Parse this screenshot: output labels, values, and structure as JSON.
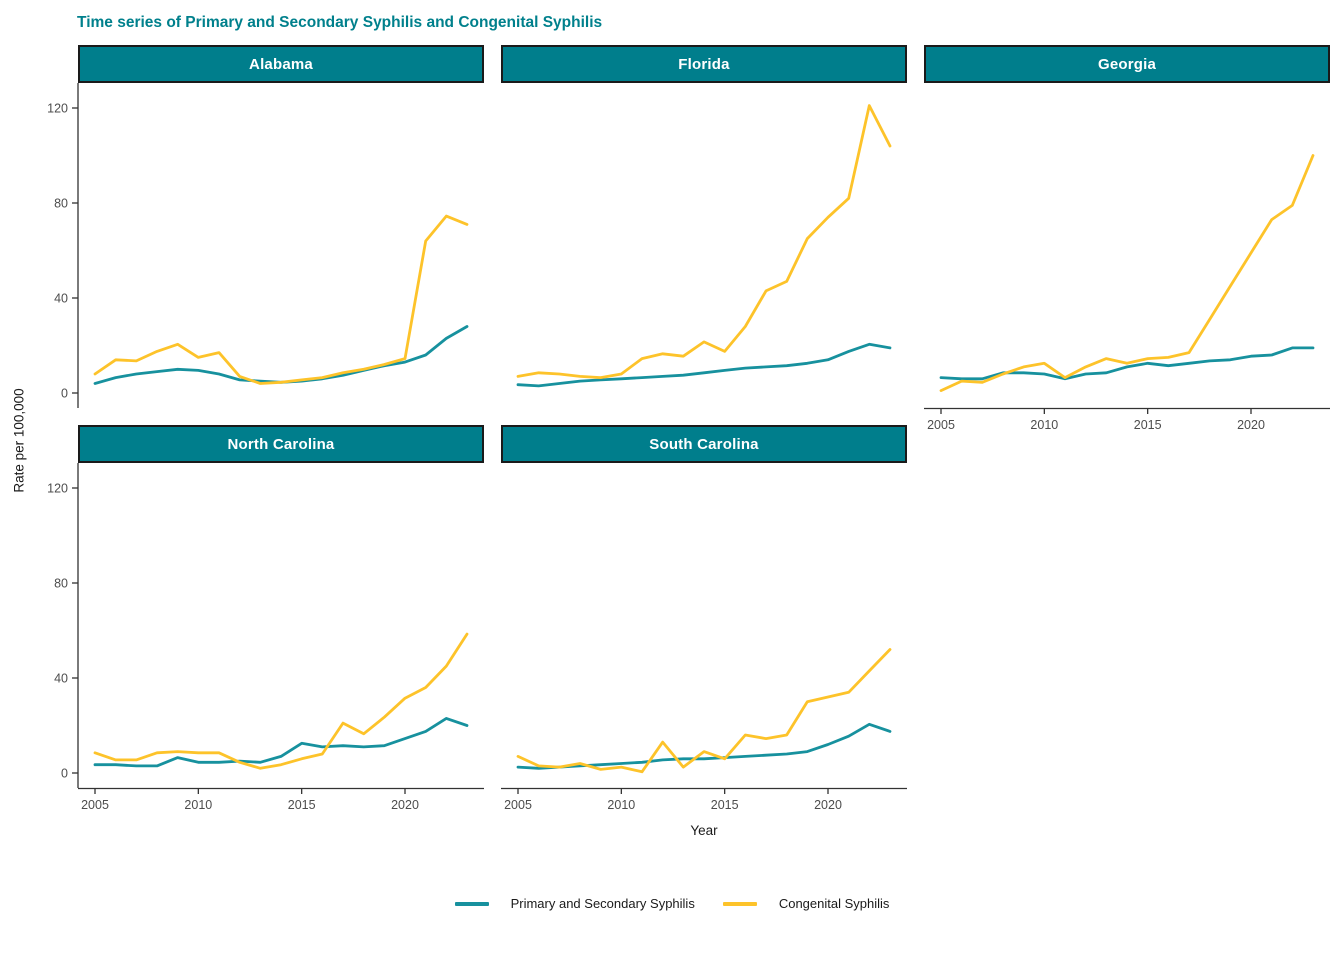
{
  "title": "Time series of Primary and Secondary Syphilis and Congenital Syphilis",
  "colors": {
    "title": "#00808C",
    "strip_background": "#007E8C",
    "strip_text": "#FFFFFF",
    "primary_secondary_line": "#17919E",
    "congenital_line": "#FDC32A",
    "axis_line": "#333333",
    "tick_label": "#4D4D4D"
  },
  "legend": [
    {
      "label": "Primary and Secondary Syphilis",
      "color": "#17919E"
    },
    {
      "label": "Congenital Syphilis",
      "color": "#FDC32A"
    }
  ],
  "chart_data": {
    "type": "line",
    "title": "Time series of Primary and Secondary Syphilis and Congenital Syphilis",
    "xlabel": "Year",
    "ylabel": "Rate per 100,000",
    "x": [
      2005,
      2006,
      2007,
      2008,
      2009,
      2010,
      2011,
      2012,
      2013,
      2014,
      2015,
      2016,
      2017,
      2018,
      2019,
      2020,
      2021,
      2022,
      2023
    ],
    "x_ticks": [
      2005,
      2010,
      2015,
      2020
    ],
    "y_ticks": [
      0,
      40,
      80,
      120
    ],
    "ylim": [
      -6,
      131
    ],
    "grid": false,
    "legend_position": "bottom",
    "facets": [
      {
        "name": "Alabama",
        "show_y_axis": true,
        "show_x_axis": false,
        "series": [
          {
            "name": "Primary and Secondary Syphilis",
            "values": [
              4,
              6.5,
              8,
              9,
              10,
              9.5,
              8,
              5.5,
              5,
              4.5,
              5,
              6,
              7.5,
              9.5,
              11.5,
              13,
              16,
              23,
              28
            ]
          },
          {
            "name": "Congenital Syphilis",
            "values": [
              8,
              14,
              13.5,
              17.5,
              20.5,
              15,
              17,
              7,
              4,
              4.5,
              5.5,
              6.5,
              8.5,
              10,
              12,
              14.5,
              64,
              74.5,
              71
            ]
          }
        ]
      },
      {
        "name": "Florida",
        "show_y_axis": false,
        "show_x_axis": false,
        "series": [
          {
            "name": "Primary and Secondary Syphilis",
            "values": [
              3.5,
              3,
              4,
              5,
              5.5,
              6,
              6.5,
              7,
              7.5,
              8.5,
              9.5,
              10.5,
              11,
              11.5,
              12.5,
              14,
              17.5,
              20.5,
              19
            ]
          },
          {
            "name": "Congenital Syphilis",
            "values": [
              7,
              8.5,
              8,
              7,
              6.5,
              8,
              14.5,
              16.5,
              15.5,
              21.5,
              17.5,
              28,
              43,
              47,
              65,
              74,
              82,
              121,
              104
            ]
          }
        ]
      },
      {
        "name": "Georgia",
        "show_y_axis": false,
        "show_x_axis": true,
        "series": [
          {
            "name": "Primary and Secondary Syphilis",
            "values": [
              6.5,
              6,
              6,
              8.5,
              8.5,
              8,
              6,
              8,
              8.5,
              11,
              12.5,
              11.5,
              12.5,
              13.5,
              14,
              15.5,
              16,
              19,
              19
            ]
          },
          {
            "name": "Congenital Syphilis",
            "values": [
              1,
              5,
              4.5,
              8,
              11,
              12.5,
              6.5,
              11,
              14.5,
              12.5,
              14.5,
              15,
              17,
              31,
              45,
              59,
              73,
              79,
              100
            ]
          }
        ]
      },
      {
        "name": "North Carolina",
        "show_y_axis": true,
        "show_x_axis": true,
        "series": [
          {
            "name": "Primary and Secondary Syphilis",
            "values": [
              3.5,
              3.5,
              3,
              3,
              6.5,
              4.5,
              4.5,
              5,
              4.5,
              7,
              12.5,
              11,
              11.5,
              11,
              11.5,
              14.5,
              17.5,
              23,
              20
            ]
          },
          {
            "name": "Congenital Syphilis",
            "values": [
              8.5,
              5.5,
              5.5,
              8.5,
              9,
              8.5,
              8.5,
              4.5,
              2,
              3.5,
              6,
              8,
              21,
              16.5,
              23.5,
              31.5,
              36,
              45,
              58.5
            ]
          }
        ]
      },
      {
        "name": "South Carolina",
        "show_y_axis": false,
        "show_x_axis": true,
        "series": [
          {
            "name": "Primary and Secondary Syphilis",
            "values": [
              2.5,
              2,
              2.5,
              3,
              3.5,
              4,
              4.5,
              5.5,
              6,
              6,
              6.5,
              7,
              7.5,
              8,
              9,
              12,
              15.5,
              20.5,
              17.5
            ]
          },
          {
            "name": "Congenital Syphilis",
            "values": [
              7,
              3,
              2.5,
              4,
              1.5,
              2.5,
              0.5,
              13,
              2.5,
              9,
              6,
              16,
              14.5,
              16,
              30,
              32,
              34,
              43,
              52
            ]
          }
        ]
      }
    ]
  }
}
